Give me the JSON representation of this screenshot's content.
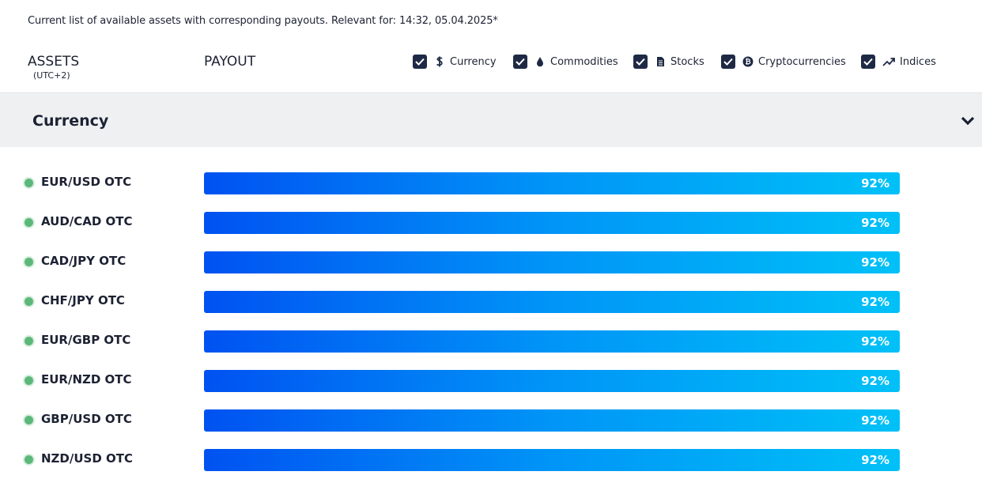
{
  "header": {
    "info_text": "Current list of available assets with corresponding payouts. Relevant for: 14:32, 05.04.2025*",
    "assets_label": "ASSETS",
    "timezone": "(UTC+2)",
    "payout_label": "PAYOUT"
  },
  "filters": [
    {
      "label": "Currency",
      "checked": true,
      "icon": "dollar-icon"
    },
    {
      "label": "Commodities",
      "checked": true,
      "icon": "drop-icon"
    },
    {
      "label": "Stocks",
      "checked": true,
      "icon": "document-icon"
    },
    {
      "label": "Cryptocurrencies",
      "checked": true,
      "icon": "bitcoin-icon"
    },
    {
      "label": "Indices",
      "checked": true,
      "icon": "trend-up-icon"
    }
  ],
  "section": {
    "title": "Currency",
    "expanded": true
  },
  "rows": [
    {
      "asset": "EUR/USD OTC",
      "payout": "92%",
      "payout_value": 92
    },
    {
      "asset": "AUD/CAD OTC",
      "payout": "92%",
      "payout_value": 92
    },
    {
      "asset": "CAD/JPY OTC",
      "payout": "92%",
      "payout_value": 92
    },
    {
      "asset": "CHF/JPY OTC",
      "payout": "92%",
      "payout_value": 92
    },
    {
      "asset": "EUR/GBP OTC",
      "payout": "92%",
      "payout_value": 92
    },
    {
      "asset": "EUR/NZD OTC",
      "payout": "92%",
      "payout_value": 92
    },
    {
      "asset": "GBP/USD OTC",
      "payout": "92%",
      "payout_value": 92
    },
    {
      "asset": "NZD/USD OTC",
      "payout": "92%",
      "payout_value": 92
    }
  ],
  "colors": {
    "bar_start": "#0052f1",
    "bar_end": "#00c1f7",
    "status_online": "#5cb87a",
    "checkbox": "#1e2a45"
  }
}
